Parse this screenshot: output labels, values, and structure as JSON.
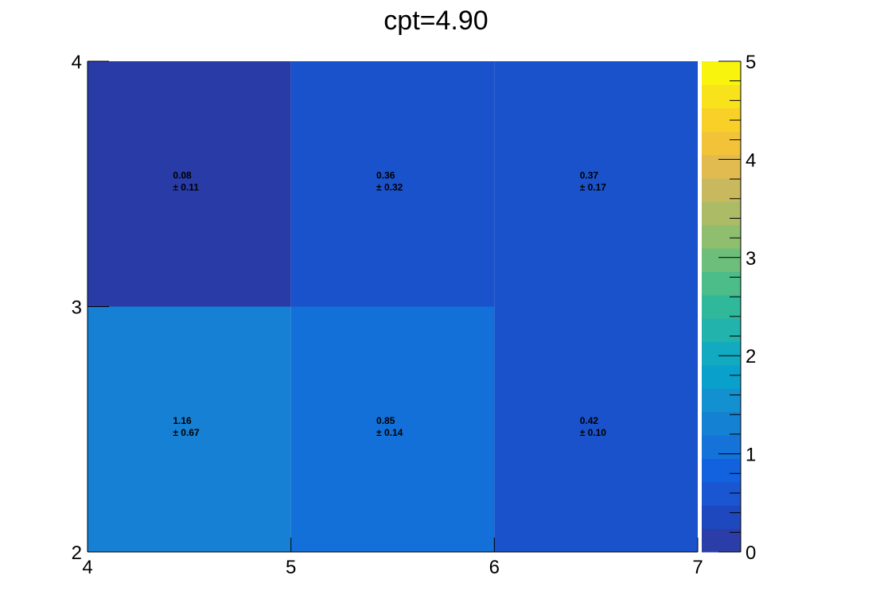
{
  "chart_data": {
    "type": "heatmap",
    "title": "cpt=4.90",
    "xlabel": "",
    "ylabel": "",
    "x_edges": [
      4,
      5,
      6,
      7
    ],
    "y_edges": [
      2,
      3,
      4
    ],
    "x_ticks": [
      4,
      5,
      6,
      7
    ],
    "y_ticks": [
      2,
      3,
      4
    ],
    "zlim": [
      0,
      5
    ],
    "z_ticks": [
      0,
      1,
      2,
      3,
      4,
      5
    ],
    "cells": [
      {
        "x": [
          4,
          5
        ],
        "y": [
          3,
          4
        ],
        "value": "0.08",
        "error": "± 0.11",
        "color": "#283ba6"
      },
      {
        "x": [
          5,
          6
        ],
        "y": [
          3,
          4
        ],
        "value": "0.36",
        "error": "± 0.32",
        "color": "#1a52cc"
      },
      {
        "x": [
          6,
          7
        ],
        "y": [
          3,
          4
        ],
        "value": "0.37",
        "error": "± 0.17",
        "color": "#1a52cc"
      },
      {
        "x": [
          4,
          5
        ],
        "y": [
          2,
          3
        ],
        "value": "1.16",
        "error": "± 0.67",
        "color": "#1580d4"
      },
      {
        "x": [
          5,
          6
        ],
        "y": [
          2,
          3
        ],
        "value": "0.85",
        "error": "± 0.14",
        "color": "#1270d8"
      },
      {
        "x": [
          6,
          7
        ],
        "y": [
          2,
          3
        ],
        "value": "0.42",
        "error": "± 0.10",
        "color": "#1a52cc"
      }
    ],
    "palette": [
      "#2b3da8",
      "#1e48bd",
      "#1a56d2",
      "#1262df",
      "#1472d9",
      "#1581d2",
      "#1290d0",
      "#0aa0cc",
      "#12aac0",
      "#22b3ac",
      "#30b89b",
      "#4cbc88",
      "#6cbe7a",
      "#8fbe6e",
      "#acbb66",
      "#c9b95e",
      "#e1bb50",
      "#f2c338",
      "#f8d028",
      "#f7e21c",
      "#f8f40e"
    ],
    "grid": false
  }
}
